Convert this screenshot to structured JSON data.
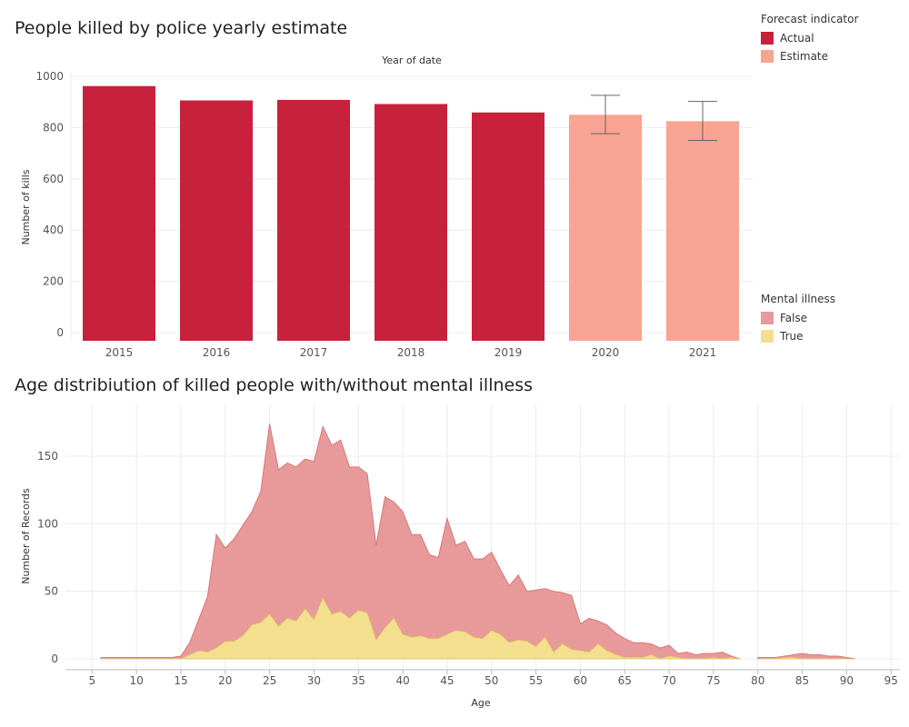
{
  "chart_data": [
    {
      "type": "bar",
      "title": "People killed by police yearly estimate",
      "header": "Year of date",
      "xlabel": "",
      "ylabel": "Number of kills",
      "ylim": [
        0,
        1000
      ],
      "yticks": [
        0,
        200,
        400,
        600,
        800,
        1000
      ],
      "categories": [
        "2015",
        "2016",
        "2017",
        "2018",
        "2019",
        "2020",
        "2021"
      ],
      "values": [
        962,
        906,
        908,
        892,
        859,
        850,
        825
      ],
      "forecast": [
        "Actual",
        "Actual",
        "Actual",
        "Actual",
        "Actual",
        "Estimate",
        "Estimate"
      ],
      "error_bars": [
        null,
        null,
        null,
        null,
        null,
        [
          776,
          926
        ],
        [
          750,
          902
        ]
      ],
      "legend": {
        "title": "Forecast indicator",
        "placement": "top-right",
        "items": [
          {
            "label": "Actual",
            "color": "#c8213c"
          },
          {
            "label": "Estimate",
            "color": "#f9a392"
          }
        ]
      },
      "grid": true
    },
    {
      "type": "area",
      "title": "Age distribiution of killed people with/without mental illness",
      "xlabel": "Age",
      "ylabel": "Number of Records",
      "xlim": [
        2,
        96
      ],
      "ylim": [
        -5,
        180
      ],
      "xticks": [
        5,
        10,
        15,
        20,
        25,
        30,
        35,
        40,
        45,
        50,
        55,
        60,
        65,
        70,
        75,
        80,
        85,
        90,
        95
      ],
      "yticks": [
        0,
        50,
        100,
        150
      ],
      "stacked": true,
      "segments": [
        {
          "x": [
            6,
            13,
            14,
            15,
            16,
            17,
            18,
            19,
            20,
            21,
            22,
            23,
            24,
            25,
            26,
            27,
            28,
            29,
            30,
            31,
            32,
            33,
            34,
            35,
            36,
            37,
            38,
            39,
            40,
            41,
            42,
            43,
            44,
            45,
            46,
            47,
            48,
            49,
            50,
            51,
            52,
            53,
            54,
            55,
            56,
            57,
            58,
            59,
            60,
            61,
            62,
            63,
            64,
            65,
            66,
            67,
            68,
            69,
            70,
            71,
            72,
            73,
            74,
            75,
            76,
            77,
            78
          ],
          "series": [
            {
              "name": "True",
              "values": [
                0,
                0,
                0,
                0,
                3,
                6,
                5,
                8,
                13,
                13,
                17,
                25,
                27,
                33,
                24,
                30,
                28,
                37,
                29,
                45,
                33,
                35,
                30,
                36,
                34,
                14,
                23,
                30,
                18,
                16,
                17,
                15,
                15,
                18,
                21,
                20,
                16,
                15,
                21,
                18,
                12,
                14,
                13,
                9,
                16,
                5,
                11,
                7,
                6,
                5,
                11,
                6,
                3,
                1,
                1,
                1,
                3,
                0,
                2,
                1,
                0,
                0,
                0,
                1,
                0,
                1,
                0
              ]
            },
            {
              "name": "False",
              "values": [
                1,
                1,
                1,
                2,
                9,
                23,
                41,
                84,
                69,
                76,
                82,
                84,
                97,
                141,
                116,
                115,
                114,
                111,
                117,
                127,
                125,
                127,
                112,
                106,
                103,
                70,
                97,
                86,
                91,
                76,
                75,
                62,
                60,
                86,
                63,
                67,
                58,
                59,
                58,
                48,
                42,
                48,
                37,
                42,
                36,
                45,
                38,
                40,
                20,
                25,
                17,
                19,
                16,
                14,
                11,
                11,
                8,
                8,
                8,
                3,
                5,
                3,
                4,
                3,
                5,
                1,
                0
              ]
            }
          ]
        },
        {
          "x": [
            80,
            81,
            82,
            83,
            84,
            85,
            86,
            87,
            88,
            89,
            90,
            91
          ],
          "series": [
            {
              "name": "True",
              "values": [
                0,
                0,
                0,
                1,
                1,
                0,
                0,
                0,
                0,
                0,
                0,
                0
              ]
            },
            {
              "name": "False",
              "values": [
                1,
                1,
                1,
                1,
                2,
                4,
                3,
                3,
                2,
                2,
                1,
                0
              ]
            }
          ]
        }
      ],
      "legend": {
        "title": "Mental illness",
        "placement": "right",
        "items": [
          {
            "label": "False",
            "color": "#e8999a"
          },
          {
            "label": "True",
            "color": "#f4df8f"
          }
        ]
      },
      "grid": true
    }
  ],
  "styles": {
    "false_stroke": "#d9777c",
    "true_stroke": "#e3c86d",
    "grid_color": "#ececec",
    "axis_text": "#555555",
    "error_bar": "#666666"
  }
}
